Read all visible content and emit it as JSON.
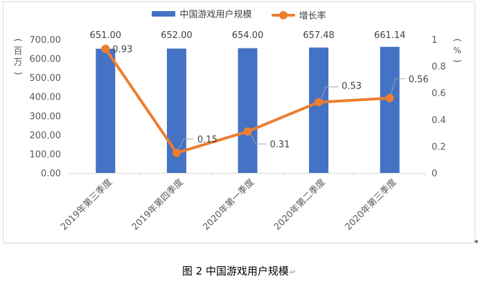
{
  "chart_data": {
    "type": "bar+line",
    "categories": [
      "2019年第三季度",
      "2019年第四季度",
      "2020年第一季度",
      "2020年第二季度",
      "2020年第三季度"
    ],
    "series": [
      {
        "name": "中国游戏用户规模",
        "type": "bar",
        "axis": "left",
        "color": "#4472C4",
        "values": [
          651.0,
          652.0,
          654.0,
          657.48,
          661.14
        ],
        "labels": [
          "651.00",
          "652.00",
          "654.00",
          "657.48",
          "661.14"
        ]
      },
      {
        "name": "增长率",
        "type": "line",
        "axis": "right",
        "color": "#ED7D31",
        "values": [
          0.93,
          0.15,
          0.31,
          0.53,
          0.56
        ],
        "labels": [
          "0.93",
          "0.15",
          "0.31",
          "0.53",
          "0.56"
        ]
      }
    ],
    "y_left": {
      "label": "（百万）",
      "ylim": [
        0,
        700
      ],
      "ticks": [
        "0.00",
        "100.00",
        "200.00",
        "300.00",
        "400.00",
        "500.00",
        "600.00",
        "700.00"
      ]
    },
    "y_right": {
      "label": "（%）",
      "ylim": [
        0,
        1
      ],
      "ticks": [
        "0",
        "0.2",
        "0.4",
        "0.6",
        "0.8",
        "1"
      ]
    },
    "legend_position": "top-center",
    "grid": false
  },
  "caption": "图 2 中国游戏用户规模",
  "caption_mark": "↵"
}
